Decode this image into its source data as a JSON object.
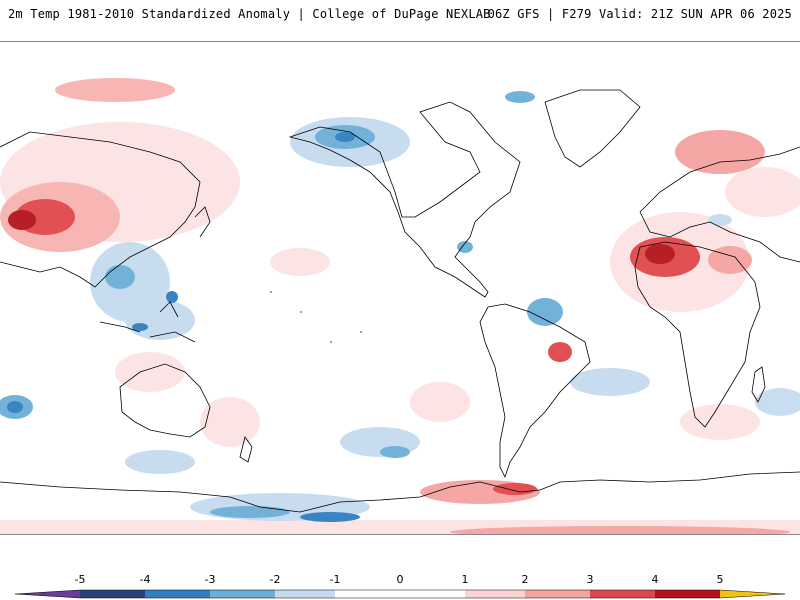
{
  "header": {
    "title_left": "2m Temp 1981-2010 Standardized Anomaly | College of DuPage NEXLAB",
    "title_right": "06Z GFS | F279 Valid: 21Z SUN APR 06 2025"
  },
  "colorbar": {
    "ticks": [
      "-5",
      "-4",
      "-3",
      "-2",
      "-1",
      "0",
      "1",
      "2",
      "3",
      "4",
      "5"
    ],
    "colors": {
      "far_neg": "#6a3d9a",
      "neg4": "#27427a",
      "neg3": "#2f7fc1",
      "neg2": "#6baed6",
      "neg1": "#c6dbef",
      "neutral": "#ffffff",
      "pos1": "#fcd5d3",
      "pos2": "#f4a3a0",
      "pos3": "#e0474a",
      "pos4": "#b5121b",
      "pos5": "#6b0a0f",
      "far_pos": "#f4c20d"
    }
  },
  "map": {
    "projection": "cylindrical, centered on Pacific",
    "coastline_color": "#000000",
    "features": [
      "north-america",
      "south-america",
      "africa",
      "europe",
      "asia",
      "australia",
      "antarctica"
    ]
  }
}
